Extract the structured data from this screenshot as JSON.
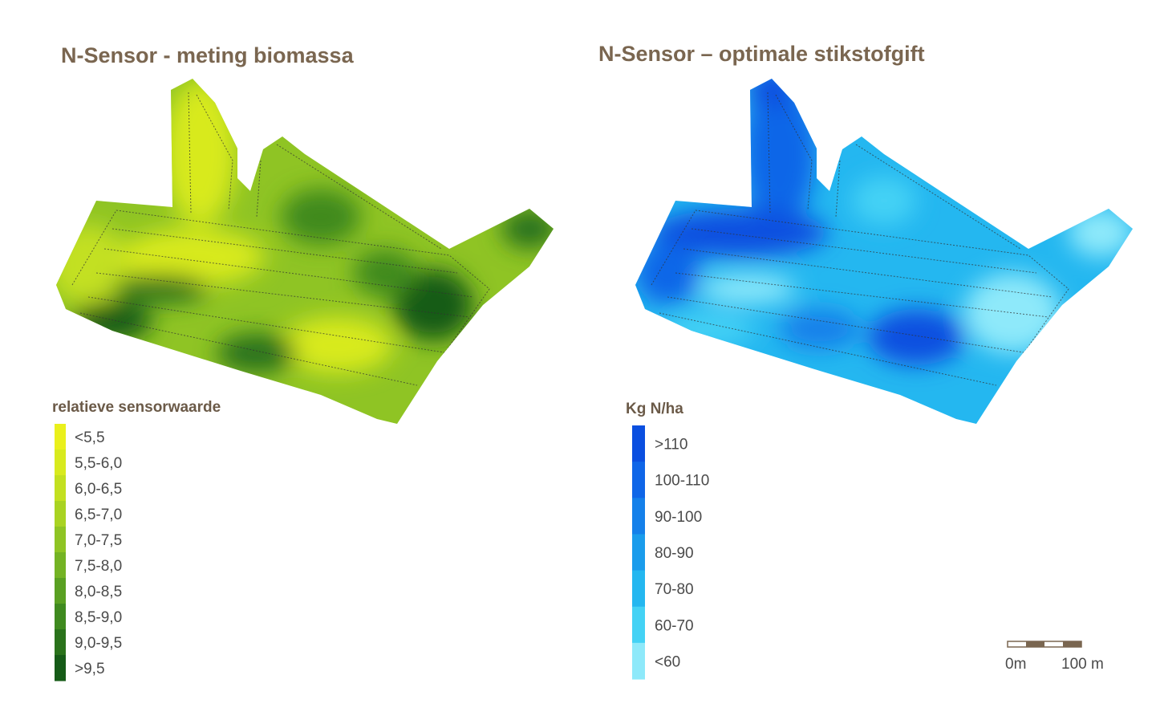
{
  "maps": [
    {
      "title": "N-Sensor - meting biomassa",
      "legend": {
        "title": "relatieve sensorwaarde",
        "items": [
          {
            "label": "<5,5",
            "color": "#eaf01c"
          },
          {
            "label": "5,5-6,0",
            "color": "#d8ea1e"
          },
          {
            "label": "6,0-6,5",
            "color": "#c3e020"
          },
          {
            "label": "6,5-7,0",
            "color": "#a9d322"
          },
          {
            "label": "7,0-7,5",
            "color": "#8fc424"
          },
          {
            "label": "7,5-8,0",
            "color": "#74b324"
          },
          {
            "label": "8,0-8,5",
            "color": "#5aa022"
          },
          {
            "label": "8,5-9,0",
            "color": "#3f8a1f"
          },
          {
            "label": "9,0-9,5",
            "color": "#2a721b"
          },
          {
            "label": ">9,5",
            "color": "#165b17"
          }
        ]
      }
    },
    {
      "title": "N-Sensor – optimale stikstofgift",
      "legend": {
        "title": "Kg N/ha",
        "items": [
          {
            "label": ">110",
            "color": "#0a4fe0"
          },
          {
            "label": "100-110",
            "color": "#0f66e8"
          },
          {
            "label": "90-100",
            "color": "#1480ea"
          },
          {
            "label": "80-90",
            "color": "#1a9cec"
          },
          {
            "label": "70-80",
            "color": "#24b7f0"
          },
          {
            "label": "60-70",
            "color": "#44d2f5"
          },
          {
            "label": "<60",
            "color": "#8ee9fa"
          }
        ]
      }
    }
  ],
  "scale_bar": {
    "labels": [
      "0m",
      "100 m"
    ]
  }
}
